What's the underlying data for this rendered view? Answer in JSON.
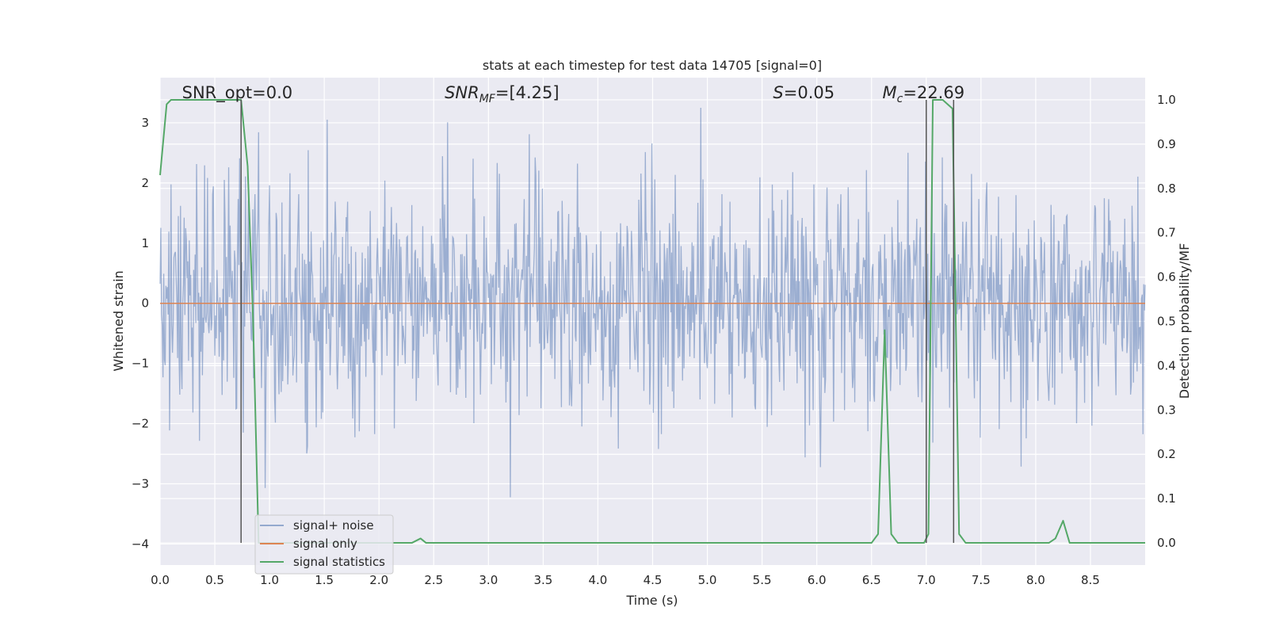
{
  "chart_data": {
    "type": "line",
    "title": "stats at each timestep for test data 14705 [signal=0]",
    "xlabel": "Time (s)",
    "ylabel": "Whitened strain",
    "y2label": "Detection probability/MF",
    "xlim": [
      0.0,
      9.0
    ],
    "ylim": [
      -4.35,
      3.75
    ],
    "y2lim": [
      -0.05,
      1.05
    ],
    "x_ticks": [
      0.0,
      0.5,
      1.0,
      1.5,
      2.0,
      2.5,
      3.0,
      3.5,
      4.0,
      4.5,
      5.0,
      5.5,
      6.0,
      6.5,
      7.0,
      7.5,
      8.0,
      8.5
    ],
    "x_tick_labels": [
      "0.0",
      "0.5",
      "1.0",
      "1.5",
      "2.0",
      "2.5",
      "3.0",
      "3.5",
      "4.0",
      "4.5",
      "5.0",
      "5.5",
      "6.0",
      "6.5",
      "7.0",
      "7.5",
      "8.0",
      "8.5"
    ],
    "y_ticks": [
      3,
      2,
      1,
      0,
      -1,
      -2,
      -3,
      -4
    ],
    "y_tick_labels": [
      "3",
      "2",
      "1",
      "0",
      "−1",
      "−2",
      "−3",
      "−4"
    ],
    "y2_ticks": [
      1.0,
      0.9,
      0.8,
      0.7,
      0.6,
      0.5,
      0.4,
      0.3,
      0.2,
      0.1,
      0.0
    ],
    "y2_tick_labels": [
      "1.0",
      "0.9",
      "0.8",
      "0.7",
      "0.6",
      "0.5",
      "0.4",
      "0.3",
      "0.2",
      "0.1",
      "0.0"
    ],
    "grid": true,
    "legend_position": "lower-left",
    "annotations": [
      {
        "text": "SNR_opt=0.0",
        "x": 0.2,
        "y": 3.5
      },
      {
        "text": "SNR_MF=[4.25]",
        "x": 2.6,
        "y": 3.5
      },
      {
        "text": "S=0.05",
        "x": 5.6,
        "y": 3.5
      },
      {
        "text": "M_c=22.69",
        "x": 6.6,
        "y": 3.5
      }
    ],
    "vertical_markers_x": [
      0.74,
      7.0,
      7.25
    ],
    "series": [
      {
        "name": "signal+ noise",
        "axis": "left",
        "color": "#4c72b0",
        "opacity": 0.5,
        "kind": "noise",
        "sample_rate_hz": 150,
        "std": 1.0
      },
      {
        "name": "signal only",
        "axis": "left",
        "color": "#dd8452",
        "x": [
          0.0,
          9.0
        ],
        "y": [
          0.0,
          0.0
        ]
      },
      {
        "name": "signal statistics",
        "axis": "right",
        "color": "#55a868",
        "x": [
          0.0,
          0.06,
          0.1,
          0.5,
          0.7,
          0.74,
          0.8,
          0.85,
          0.9,
          2.3,
          2.38,
          2.43,
          6.5,
          6.56,
          6.62,
          6.68,
          6.74,
          6.98,
          7.02,
          7.06,
          7.15,
          7.24,
          7.3,
          7.36,
          8.12,
          8.18,
          8.25,
          8.31,
          9.0
        ],
        "y": [
          0.83,
          0.99,
          1.0,
          1.0,
          1.0,
          1.0,
          0.85,
          0.5,
          0.0,
          0.0,
          0.01,
          0.0,
          0.0,
          0.02,
          0.48,
          0.02,
          0.0,
          0.0,
          0.02,
          1.0,
          1.0,
          0.98,
          0.02,
          0.0,
          0.0,
          0.01,
          0.05,
          0.0,
          0.0
        ]
      }
    ]
  }
}
